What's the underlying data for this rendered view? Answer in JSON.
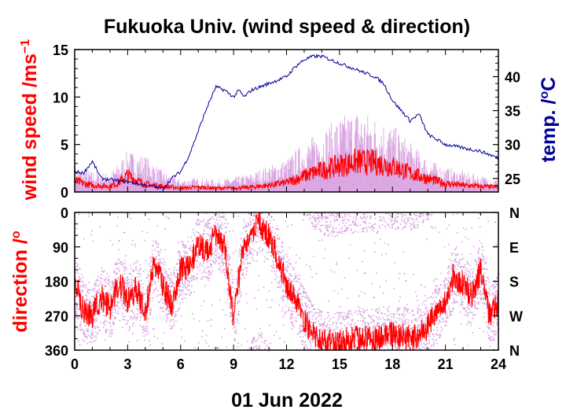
{
  "title": "Fukuoka Univ. (wind speed & direction)",
  "date_label": "01 Jun 2022",
  "colors": {
    "wind": "#ff0000",
    "gust": "#d8a0e0",
    "temp": "#000099",
    "axis": "#000000"
  },
  "chart_data": [
    {
      "type": "line",
      "name": "wind-temperature",
      "xlim": [
        0,
        24
      ],
      "x_ticks": [
        "0",
        "3",
        "6",
        "9",
        "12",
        "15",
        "18",
        "21",
        "24"
      ],
      "y_left": {
        "label": "wind speed /ms",
        "label_sup": "−1",
        "lim": [
          0,
          15
        ],
        "ticks": [
          "0",
          "5",
          "10",
          "15"
        ]
      },
      "y_right": {
        "label": "temp. /",
        "label_sup": "o",
        "label_tail": "C",
        "lim": [
          23,
          44
        ],
        "ticks": [
          "25",
          "30",
          "35",
          "40"
        ]
      },
      "wind_speed": {
        "x": [
          0,
          0.5,
          1,
          2,
          2.5,
          3,
          3.5,
          4,
          5,
          6,
          7,
          8,
          9,
          10,
          11,
          12,
          12.5,
          13,
          14,
          15,
          16,
          17,
          18,
          19,
          20,
          21,
          22,
          23,
          24
        ],
        "y": [
          1.2,
          0.9,
          0.7,
          0.6,
          1.0,
          1.8,
          1.2,
          0.8,
          0.6,
          0.4,
          0.5,
          0.4,
          0.4,
          0.5,
          0.7,
          1.0,
          1.3,
          1.7,
          2.3,
          2.8,
          3.2,
          3.1,
          2.7,
          2.0,
          1.4,
          0.9,
          0.7,
          0.6,
          0.5
        ]
      },
      "gust_max": {
        "x": [
          0,
          1,
          2,
          3,
          4,
          5,
          6,
          7,
          8,
          9,
          10,
          11,
          12,
          13,
          14,
          15,
          16,
          17,
          18,
          19,
          20,
          21,
          22,
          23,
          24
        ],
        "y": [
          2.5,
          2.0,
          1.8,
          4.0,
          3.5,
          2.0,
          1.2,
          1.4,
          1.2,
          1.4,
          1.8,
          2.6,
          3.2,
          4.8,
          6.0,
          7.2,
          8.0,
          7.4,
          6.5,
          4.8,
          3.2,
          2.4,
          2.0,
          1.6,
          1.2
        ]
      },
      "temperature": {
        "x": [
          0,
          0.5,
          1,
          1.5,
          2,
          3,
          4,
          5,
          5.5,
          6,
          6.5,
          7,
          7.5,
          8,
          8.5,
          9,
          9.3,
          9.6,
          10,
          11,
          12,
          12.5,
          13,
          13.5,
          14,
          15,
          16,
          17,
          17.5,
          18,
          19,
          19.5,
          20,
          21,
          22,
          23,
          24
        ],
        "y": [
          26.0,
          25.8,
          27.5,
          25.0,
          24.8,
          24.5,
          24.0,
          23.5,
          25.0,
          26.0,
          28.5,
          32.0,
          35.5,
          38.5,
          38.0,
          37.0,
          38.0,
          37.0,
          38.0,
          39.0,
          40.0,
          41.5,
          42.5,
          43.0,
          43.0,
          42.0,
          41.0,
          40.0,
          39.0,
          36.5,
          33.5,
          34.5,
          31.5,
          30.0,
          29.5,
          29.0,
          28.0
        ]
      }
    },
    {
      "type": "scatter",
      "name": "wind-direction",
      "xlim": [
        0,
        24
      ],
      "x_ticks": [
        "0",
        "3",
        "6",
        "9",
        "12",
        "15",
        "18",
        "21",
        "24"
      ],
      "y_left": {
        "label": "direction /",
        "label_sup": "o",
        "lim": [
          0,
          360
        ],
        "inverted": true,
        "ticks": [
          "0",
          "90",
          "180",
          "270",
          "360"
        ]
      },
      "y_right": {
        "ticks": [
          "N",
          "E",
          "S",
          "W",
          "N"
        ]
      },
      "direction": {
        "x": [
          0,
          0.5,
          1,
          1.5,
          2,
          2.5,
          3,
          3.5,
          4,
          4.5,
          5,
          5.5,
          6,
          6.5,
          7,
          7.5,
          8,
          8.5,
          9,
          9.5,
          10,
          10.5,
          11,
          11.5,
          12,
          12.5,
          13,
          13.5,
          14,
          15,
          16,
          17,
          18,
          19,
          19.5,
          20,
          20.5,
          21,
          21.5,
          22,
          22.5,
          23,
          23.5,
          24
        ],
        "y": [
          180,
          260,
          270,
          220,
          250,
          180,
          230,
          200,
          260,
          130,
          190,
          240,
          150,
          140,
          90,
          100,
          60,
          90,
          280,
          100,
          50,
          30,
          60,
          120,
          190,
          230,
          280,
          320,
          340,
          340,
          330,
          330,
          320,
          330,
          320,
          300,
          260,
          230,
          160,
          190,
          220,
          150,
          270,
          230
        ]
      }
    }
  ]
}
